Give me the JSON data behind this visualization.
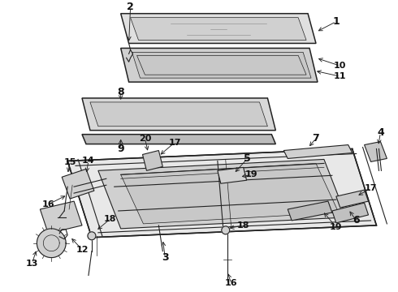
{
  "bg_color": "#ffffff",
  "line_color": "#222222",
  "label_color": "#111111",
  "font_size_large": 9,
  "font_size_small": 7,
  "shading_color": "#c0c0c0",
  "shading_light": "#d8d8d8",
  "shading_dark": "#a8a8a8"
}
